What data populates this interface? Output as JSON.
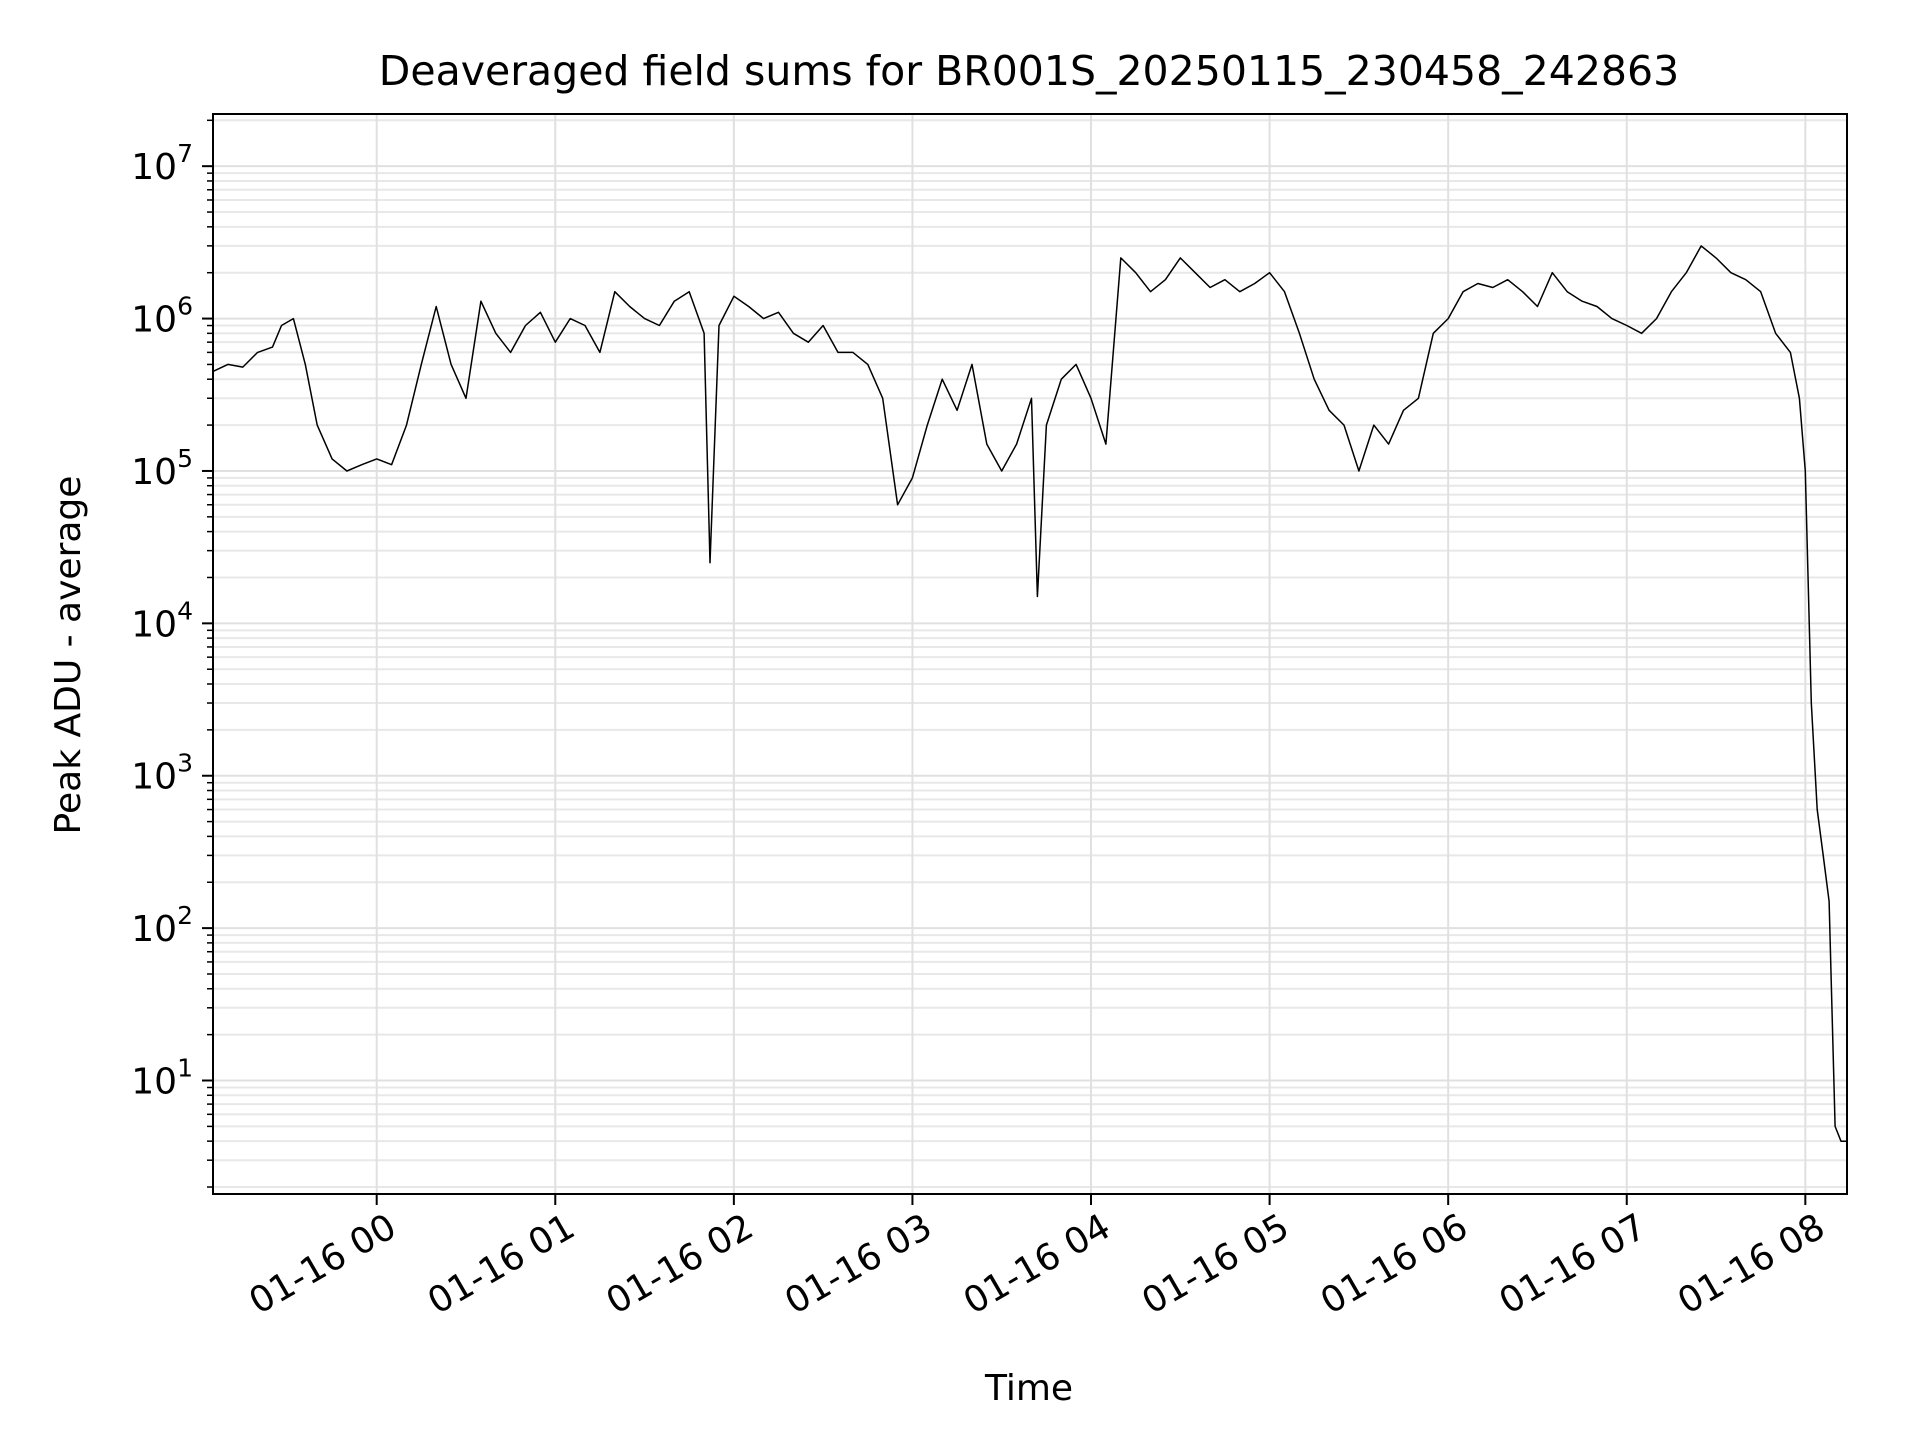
{
  "chart_data": {
    "type": "line",
    "title": "Deaveraged field sums for BR001S_20250115_230458_242863",
    "xlabel": "Time",
    "ylabel": "Peak ADU - average",
    "yscale": "log",
    "ylim": [
      1.8,
      22000000
    ],
    "xlim": [
      "01-15 23:05",
      "01-16 08:14"
    ],
    "grid": true,
    "line_color": "#000000",
    "x_ticks": [
      "01-16 00",
      "01-16 01",
      "01-16 02",
      "01-16 03",
      "01-16 04",
      "01-16 05",
      "01-16 06",
      "01-16 07",
      "01-16 08"
    ],
    "y_ticks": [
      {
        "base": "10",
        "exp": "1",
        "value": 10
      },
      {
        "base": "10",
        "exp": "2",
        "value": 100
      },
      {
        "base": "10",
        "exp": "3",
        "value": 1000
      },
      {
        "base": "10",
        "exp": "4",
        "value": 10000
      },
      {
        "base": "10",
        "exp": "5",
        "value": 100000
      },
      {
        "base": "10",
        "exp": "6",
        "value": 1000000
      },
      {
        "base": "10",
        "exp": "7",
        "value": 10000000
      }
    ],
    "series": [
      {
        "x": [
          "01-15 23:05",
          "01-15 23:10",
          "01-15 23:15",
          "01-15 23:20",
          "01-15 23:25",
          "01-15 23:28",
          "01-15 23:32",
          "01-15 23:36",
          "01-15 23:40",
          "01-15 23:45",
          "01-15 23:50",
          "01-15 23:55",
          "01-16 00:00",
          "01-16 00:05",
          "01-16 00:10",
          "01-16 00:15",
          "01-16 00:20",
          "01-16 00:25",
          "01-16 00:30",
          "01-16 00:35",
          "01-16 00:40",
          "01-16 00:45",
          "01-16 00:50",
          "01-16 00:55",
          "01-16 01:00",
          "01-16 01:05",
          "01-16 01:10",
          "01-16 01:15",
          "01-16 01:20",
          "01-16 01:25",
          "01-16 01:30",
          "01-16 01:35",
          "01-16 01:40",
          "01-16 01:45",
          "01-16 01:50",
          "01-16 01:52",
          "01-16 01:55",
          "01-16 02:00",
          "01-16 02:05",
          "01-16 02:10",
          "01-16 02:15",
          "01-16 02:20",
          "01-16 02:25",
          "01-16 02:30",
          "01-16 02:35",
          "01-16 02:40",
          "01-16 02:45",
          "01-16 02:50",
          "01-16 02:55",
          "01-16 03:00",
          "01-16 03:05",
          "01-16 03:10",
          "01-16 03:15",
          "01-16 03:20",
          "01-16 03:25",
          "01-16 03:30",
          "01-16 03:35",
          "01-16 03:40",
          "01-16 03:42",
          "01-16 03:45",
          "01-16 03:50",
          "01-16 03:55",
          "01-16 04:00",
          "01-16 04:05",
          "01-16 04:10",
          "01-16 04:15",
          "01-16 04:20",
          "01-16 04:25",
          "01-16 04:30",
          "01-16 04:35",
          "01-16 04:40",
          "01-16 04:45",
          "01-16 04:50",
          "01-16 04:55",
          "01-16 05:00",
          "01-16 05:05",
          "01-16 05:10",
          "01-16 05:15",
          "01-16 05:20",
          "01-16 05:25",
          "01-16 05:30",
          "01-16 05:35",
          "01-16 05:40",
          "01-16 05:45",
          "01-16 05:50",
          "01-16 05:55",
          "01-16 06:00",
          "01-16 06:05",
          "01-16 06:10",
          "01-16 06:15",
          "01-16 06:20",
          "01-16 06:25",
          "01-16 06:30",
          "01-16 06:35",
          "01-16 06:40",
          "01-16 06:45",
          "01-16 06:50",
          "01-16 06:55",
          "01-16 07:00",
          "01-16 07:05",
          "01-16 07:10",
          "01-16 07:15",
          "01-16 07:20",
          "01-16 07:25",
          "01-16 07:30",
          "01-16 07:35",
          "01-16 07:40",
          "01-16 07:45",
          "01-16 07:50",
          "01-16 07:55",
          "01-16 07:58",
          "01-16 08:00",
          "01-16 08:02",
          "01-16 08:04",
          "01-16 08:06",
          "01-16 08:08",
          "01-16 08:10",
          "01-16 08:12",
          "01-16 08:14"
        ],
        "y": [
          450000,
          500000,
          480000,
          600000,
          650000,
          900000,
          1000000,
          500000,
          200000,
          120000,
          100000,
          110000,
          120000,
          110000,
          200000,
          500000,
          1200000,
          500000,
          300000,
          1300000,
          800000,
          600000,
          900000,
          1100000,
          700000,
          1000000,
          900000,
          600000,
          1500000,
          1200000,
          1000000,
          900000,
          1300000,
          1500000,
          800000,
          25000,
          900000,
          1400000,
          1200000,
          1000000,
          1100000,
          800000,
          700000,
          900000,
          600000,
          600000,
          500000,
          300000,
          60000,
          90000,
          200000,
          400000,
          250000,
          500000,
          150000,
          100000,
          150000,
          300000,
          15000,
          200000,
          400000,
          500000,
          300000,
          150000,
          2500000,
          2000000,
          1500000,
          1800000,
          2500000,
          2000000,
          1600000,
          1800000,
          1500000,
          1700000,
          2000000,
          1500000,
          800000,
          400000,
          250000,
          200000,
          100000,
          200000,
          150000,
          250000,
          300000,
          800000,
          1000000,
          1500000,
          1700000,
          1600000,
          1800000,
          1500000,
          1200000,
          2000000,
          1500000,
          1300000,
          1200000,
          1000000,
          900000,
          800000,
          1000000,
          1500000,
          2000000,
          3000000,
          2500000,
          2000000,
          1800000,
          1500000,
          800000,
          600000,
          300000,
          100000,
          3000,
          600,
          300,
          150,
          5,
          4,
          4
        ]
      }
    ]
  }
}
